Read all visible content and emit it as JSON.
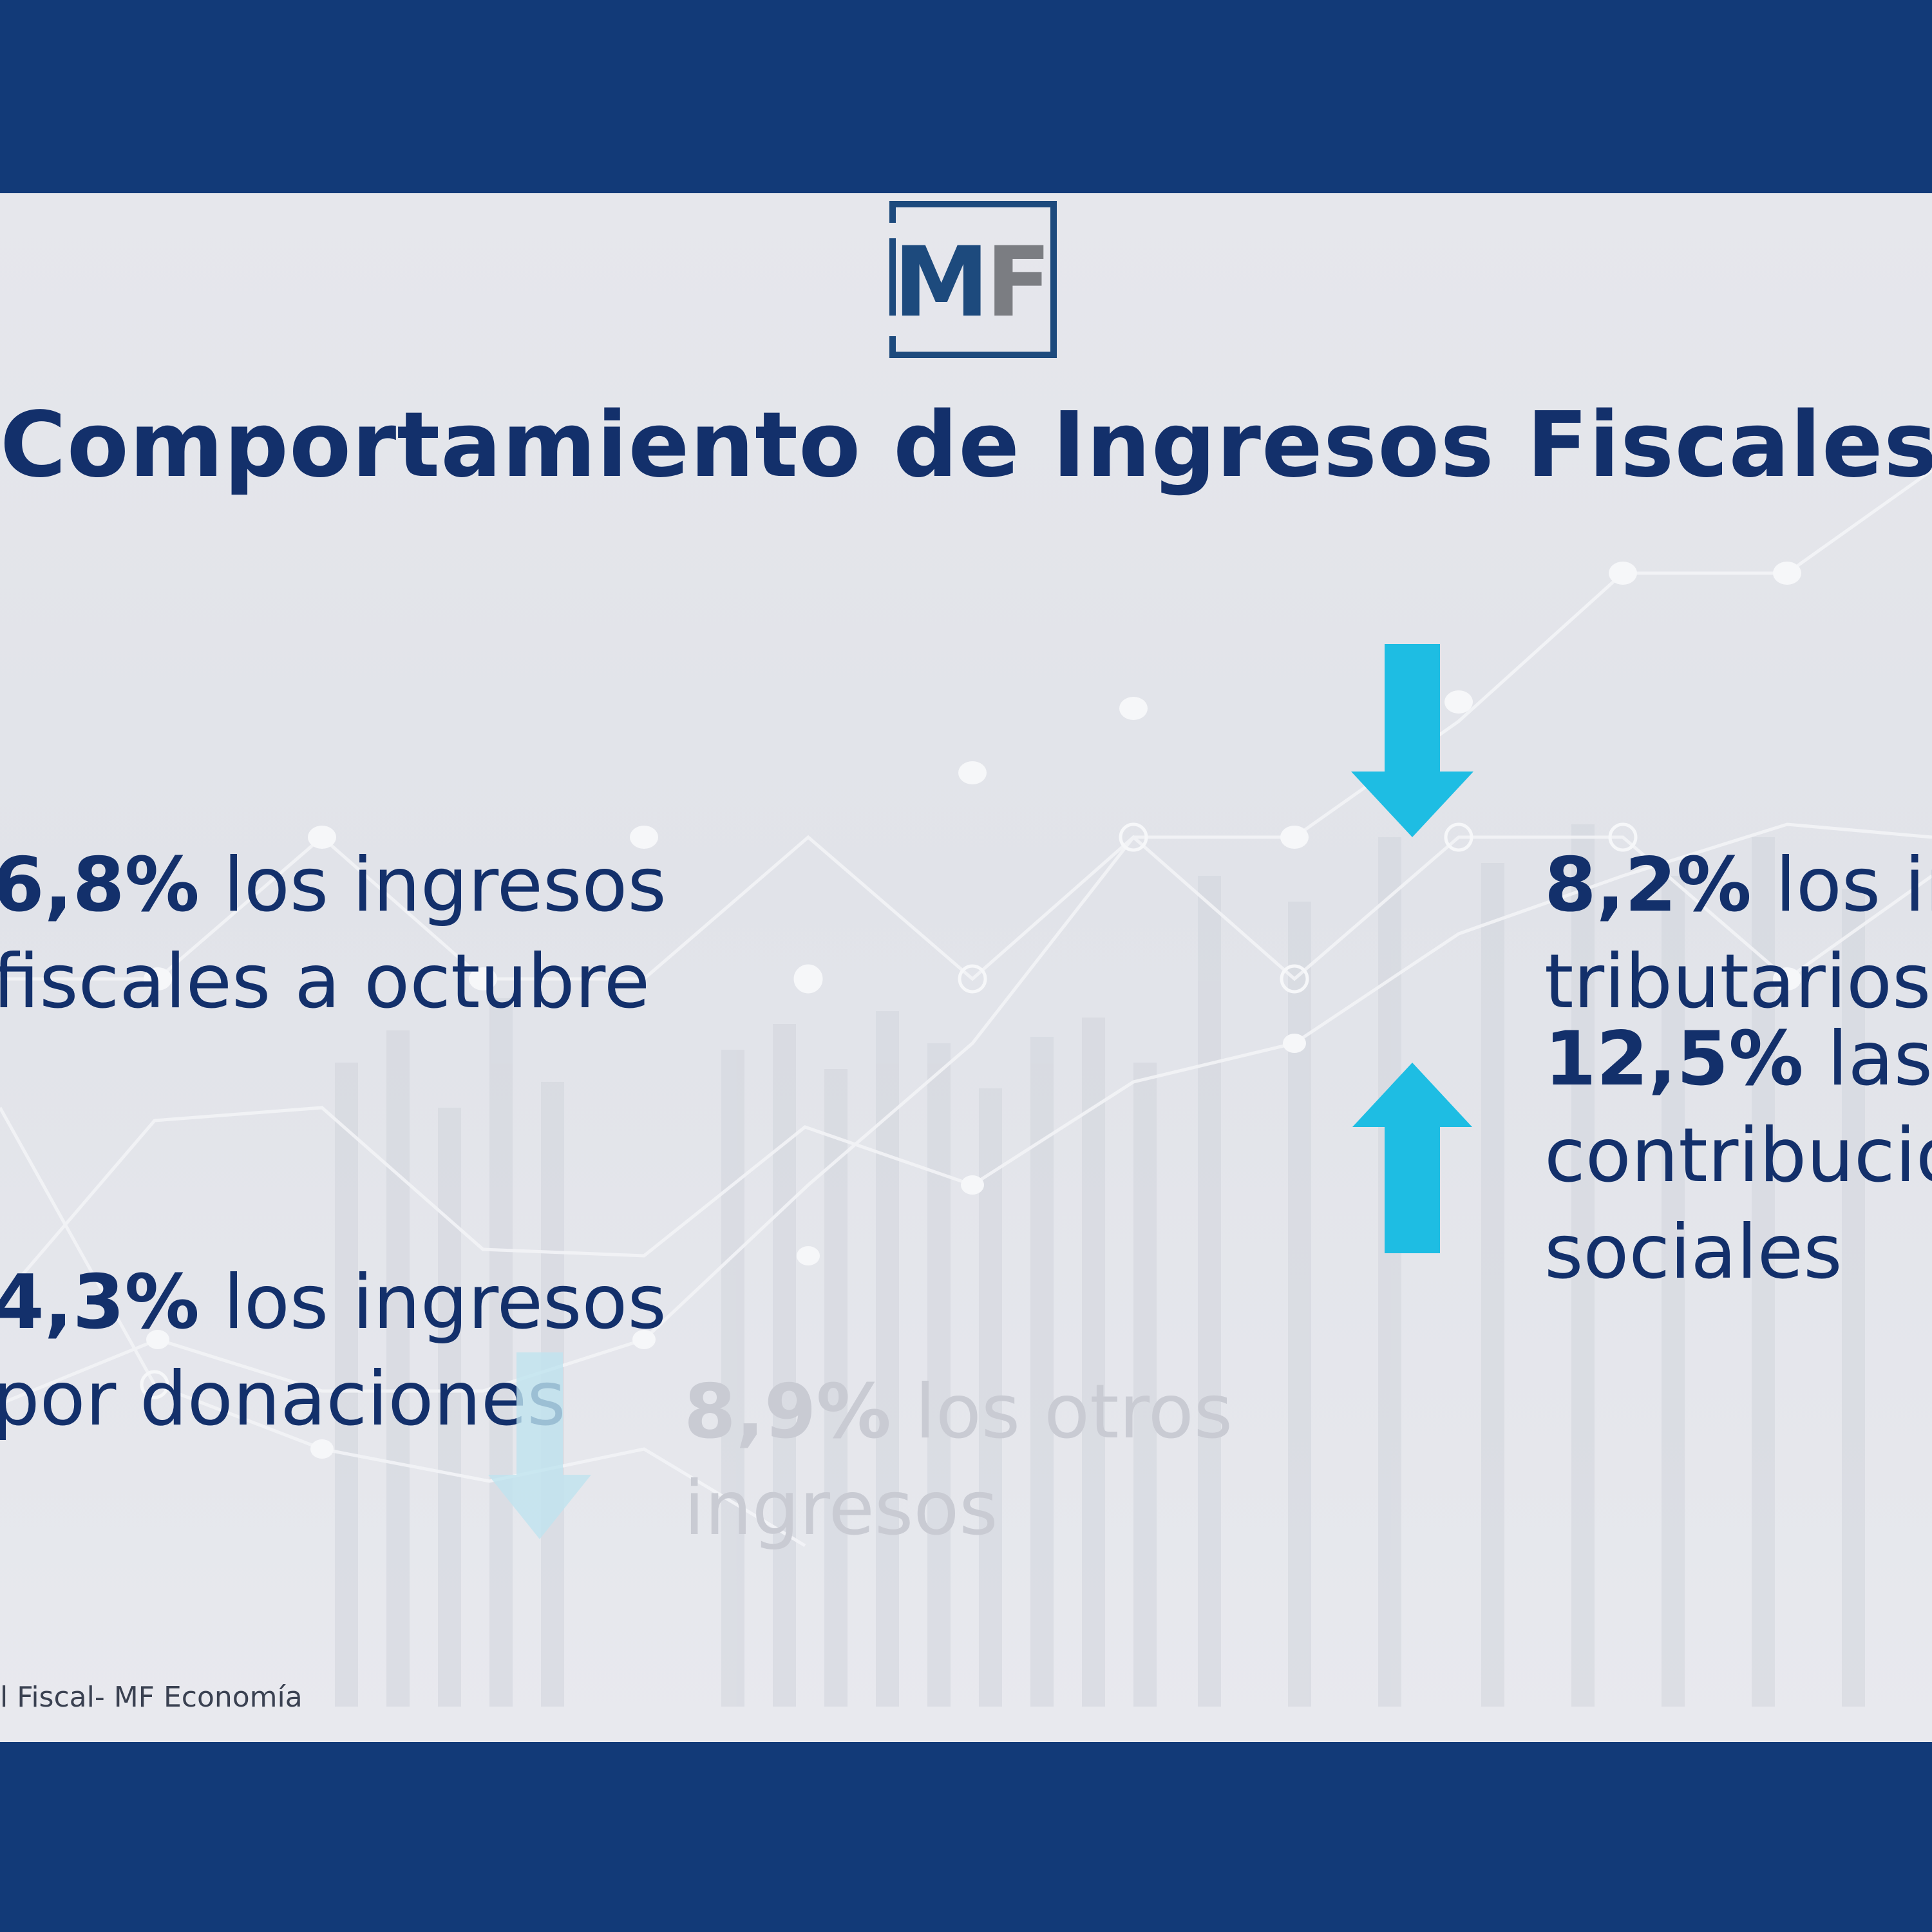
{
  "logo": {
    "letters": "MF",
    "accent": "#1d4a7d",
    "letter_f_color": "#7b7d82"
  },
  "title": "Comportamiento de Ingresos Fiscales",
  "stats": [
    {
      "id": "fiscal",
      "value": "6,8%",
      "text_line1": " los ingresos",
      "text_line2": "fiscales a octubre",
      "direction": "none"
    },
    {
      "id": "donaciones",
      "value": "4,3%",
      "text_line1": " los ingresos",
      "text_line2": "por donaciones",
      "direction": "none"
    },
    {
      "id": "tributarios",
      "value": "8,2%",
      "text_line1": " los in",
      "text_line2": "tributarios",
      "direction": "down"
    },
    {
      "id": "contribuciones",
      "value": "12,5%",
      "text_line1": " las",
      "text_line2": "contribucio",
      "text_line3": "sociales",
      "direction": "up"
    },
    {
      "id": "otros",
      "value": "8,9%",
      "text_line1": " los otros",
      "text_line2": "ingresos",
      "direction": "down"
    }
  ],
  "source": "l Fiscal- MF Economía",
  "colors": {
    "frame": "#123a78",
    "text": "#13306b",
    "arrow": "#1ebde3",
    "arrow_faded": "#bfe3ef"
  }
}
